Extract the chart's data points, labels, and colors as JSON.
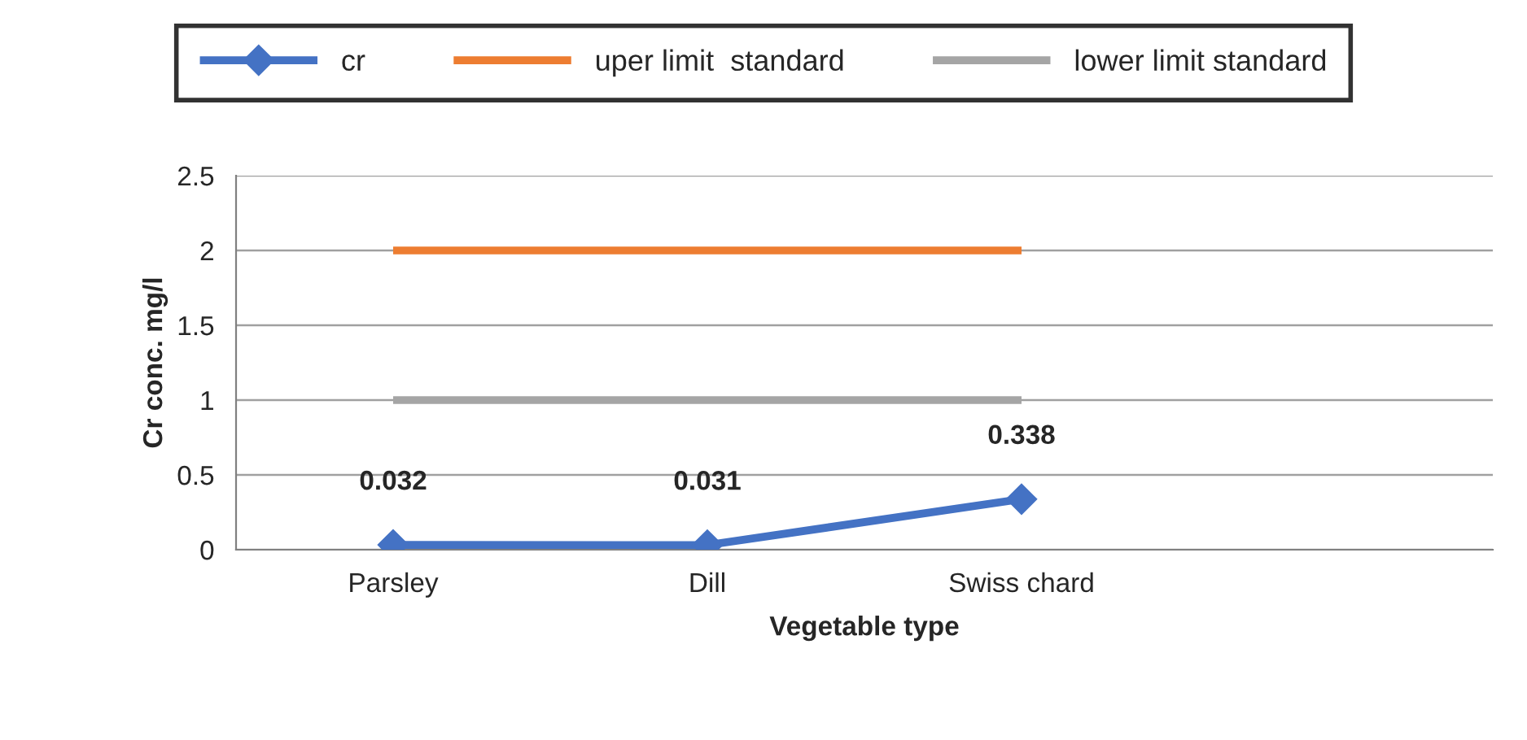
{
  "chart_data": {
    "type": "line",
    "xlabel": "Vegetable type",
    "ylabel": "Cr conc. mg/l",
    "categories": [
      "Parsley",
      "Dill",
      "Swiss chard",
      null
    ],
    "series": [
      {
        "name": "cr",
        "color": "#4472c4",
        "values": [
          0.032,
          0.031,
          0.338,
          null
        ],
        "marker": "diamond",
        "value_labels": [
          "0.032",
          "0.031",
          "0.338",
          null
        ]
      },
      {
        "name": "uper limit  standard",
        "color": "#ed7d31",
        "values": [
          2,
          2,
          2,
          null
        ],
        "marker": "none"
      },
      {
        "name": "lower limit standard",
        "color": "#a5a5a5",
        "values": [
          1,
          1,
          1,
          null
        ],
        "marker": "none"
      }
    ],
    "ylim": [
      0,
      2.5
    ],
    "yticks": [
      0,
      0.5,
      1,
      1.5,
      2,
      2.5
    ],
    "grid": "y",
    "legend": "top",
    "line_style": "solid"
  }
}
